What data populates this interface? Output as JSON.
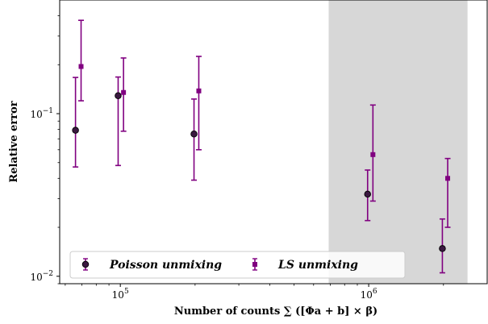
{
  "chart_data": {
    "type": "scatter",
    "xlabel": "Number of counts ∑ ([Φa + b] × β)",
    "ylabel": "Relative error",
    "x_scale": "log",
    "y_scale": "log",
    "xlim": [
      57000,
      3000000
    ],
    "ylim": [
      0.009,
      0.5
    ],
    "x_ticks": [
      {
        "value": 100000,
        "base": "10",
        "exp": "5"
      },
      {
        "value": 1000000,
        "base": "10",
        "exp": "6"
      }
    ],
    "y_ticks": [
      {
        "value": 0.01,
        "base": "10",
        "exp": "−2"
      },
      {
        "value": 0.1,
        "base": "10",
        "exp": "−1"
      }
    ],
    "grid": false,
    "legend_position": "bottom-left",
    "shaded_region": {
      "x_start": 690000,
      "x_end": 2500000,
      "color": "#d3d3d3"
    },
    "series": [
      {
        "name": "Poisson unmixing",
        "marker": "circle",
        "color": "#800080",
        "fill": "#3a1840",
        "points": [
          {
            "x": 66000,
            "y": 0.079,
            "lo": 0.047,
            "hi": 0.167
          },
          {
            "x": 98000,
            "y": 0.129,
            "lo": 0.048,
            "hi": 0.168
          },
          {
            "x": 198000,
            "y": 0.075,
            "lo": 0.039,
            "hi": 0.123
          },
          {
            "x": 990000,
            "y": 0.032,
            "lo": 0.022,
            "hi": 0.045
          },
          {
            "x": 1980000,
            "y": 0.0148,
            "lo": 0.0105,
            "hi": 0.0225
          }
        ]
      },
      {
        "name": "LS unmixing",
        "marker": "square",
        "color": "#800080",
        "fill": "#800080",
        "points": [
          {
            "x": 69500,
            "y": 0.195,
            "lo": 0.12,
            "hi": 0.375
          },
          {
            "x": 103000,
            "y": 0.135,
            "lo": 0.078,
            "hi": 0.22
          },
          {
            "x": 207000,
            "y": 0.138,
            "lo": 0.06,
            "hi": 0.225
          },
          {
            "x": 1040000,
            "y": 0.056,
            "lo": 0.029,
            "hi": 0.113
          },
          {
            "x": 2080000,
            "y": 0.04,
            "lo": 0.02,
            "hi": 0.053
          }
        ]
      }
    ]
  }
}
